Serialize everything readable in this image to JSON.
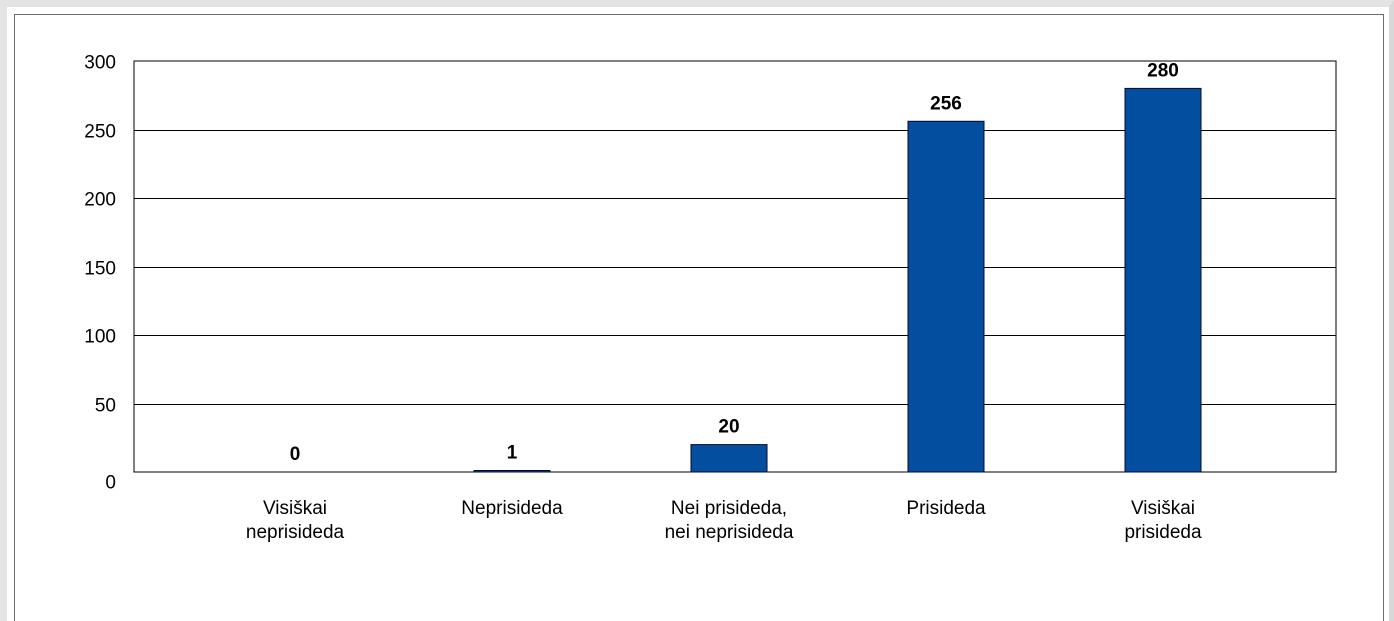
{
  "chart_data": {
    "type": "bar",
    "title": "",
    "xlabel": "",
    "ylabel": "",
    "categories": [
      [
        "Visiškai",
        "neprisideda"
      ],
      [
        "Neprisideda"
      ],
      [
        "Nei prisideda,",
        "nei neprisideda"
      ],
      [
        "Prisideda"
      ],
      [
        "Visiškai",
        "prisideda"
      ]
    ],
    "values": [
      0,
      1,
      20,
      256,
      280
    ],
    "data_labels": [
      "0",
      "1",
      "20",
      "256",
      "280"
    ],
    "ylim": [
      0,
      300
    ],
    "yticks": [
      0,
      50,
      100,
      150,
      200,
      250,
      300
    ],
    "grid": true,
    "legend": "none",
    "colors": {
      "bar": "#044ea0",
      "bar_outline": "#0a0a2a",
      "grid": "#000000"
    }
  }
}
